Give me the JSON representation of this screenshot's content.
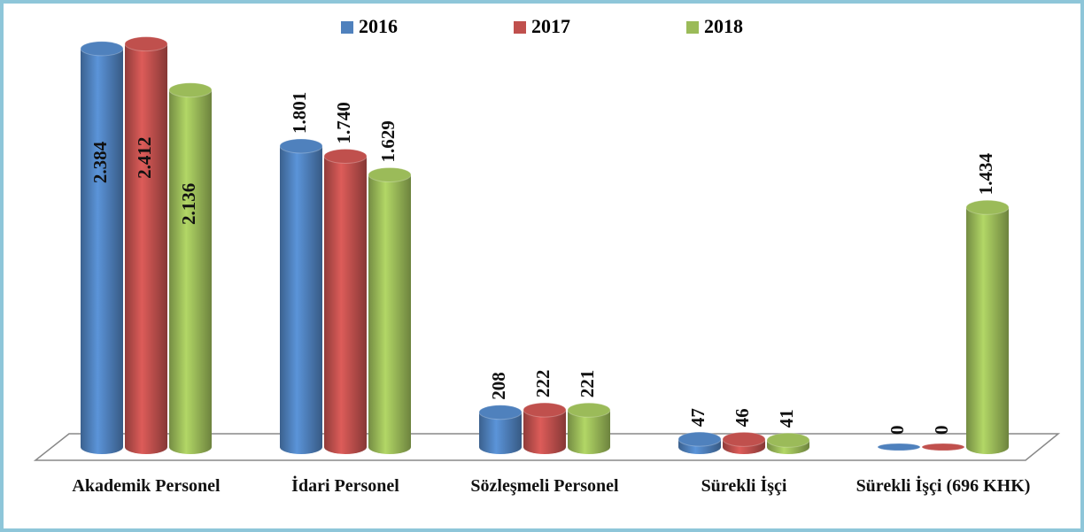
{
  "chart_data": {
    "type": "bar3d",
    "categories": [
      "Akademik Personel",
      "İdari Personel",
      "Sözleşmeli Personel",
      "Sürekli İşçi",
      "Sürekli İşçi (696 KHK)"
    ],
    "series": [
      {
        "name": "2016",
        "color": "#4f81bd",
        "values": [
          2384,
          1801,
          208,
          47,
          0
        ],
        "value_labels": [
          "2.384",
          "1.801",
          "208",
          "47",
          "0"
        ]
      },
      {
        "name": "2017",
        "color": "#c0504d",
        "values": [
          2412,
          1740,
          222,
          46,
          0
        ],
        "value_labels": [
          "2.412",
          "1.740",
          "222",
          "46",
          "0"
        ]
      },
      {
        "name": "2018",
        "color": "#9bbb59",
        "values": [
          2136,
          1629,
          221,
          41,
          1434
        ],
        "value_labels": [
          "2.136",
          "1.629",
          "221",
          "41",
          "1.434"
        ]
      }
    ],
    "ylim": [
      0,
      2500
    ],
    "legend": "top"
  }
}
